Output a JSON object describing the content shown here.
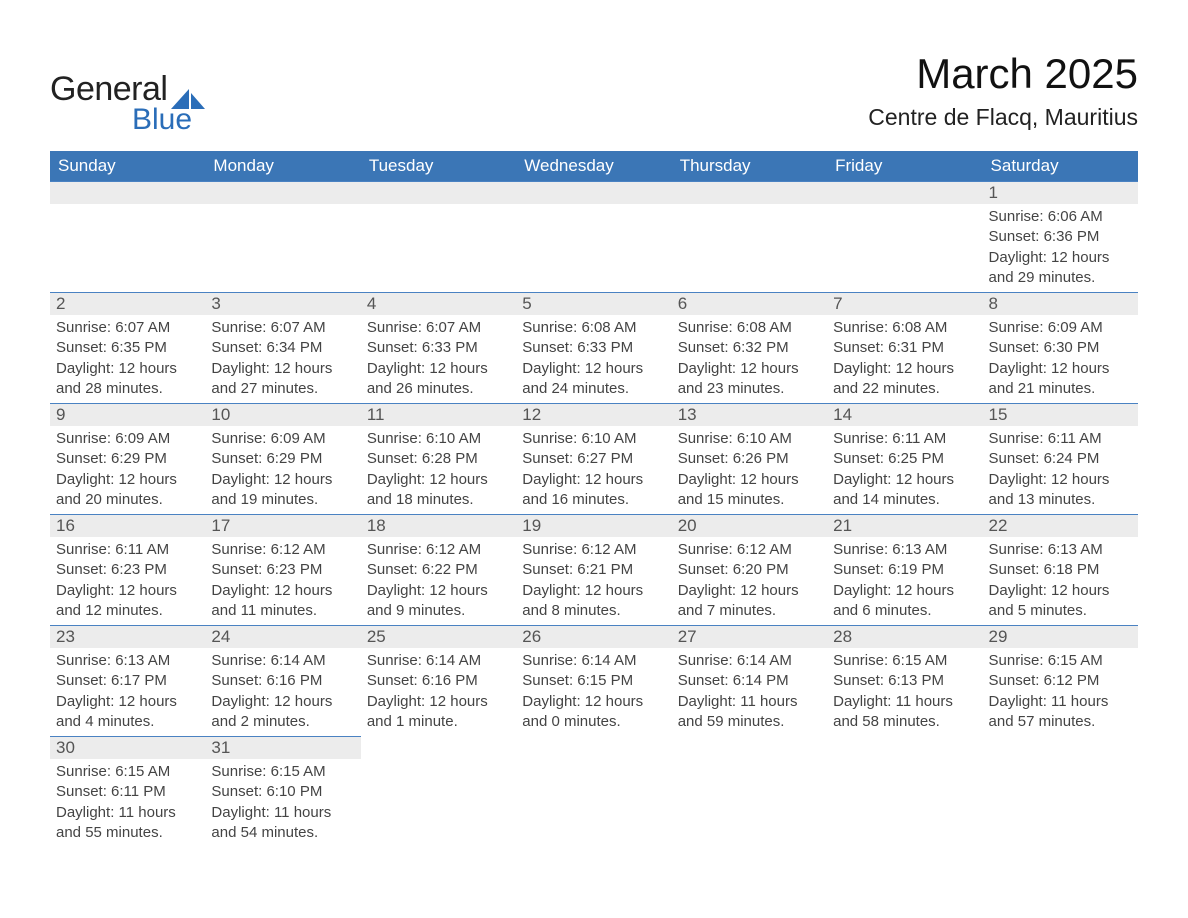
{
  "brand": {
    "word1": "General",
    "word2": "Blue",
    "accent_color": "#2a6db8"
  },
  "title": "March 2025",
  "location": "Centre de Flacq, Mauritius",
  "colors": {
    "header_bg": "#3b76b6",
    "header_text": "#ffffff",
    "daynum_bg": "#ececec",
    "row_border": "#4a82c2",
    "text": "#444444"
  },
  "fontsizes": {
    "title_pt": 42,
    "location_pt": 23,
    "th_pt": 17,
    "daynum_pt": 17,
    "body_pt": 15
  },
  "weekdays": [
    "Sunday",
    "Monday",
    "Tuesday",
    "Wednesday",
    "Thursday",
    "Friday",
    "Saturday"
  ],
  "labels": {
    "sunrise": "Sunrise:",
    "sunset": "Sunset:",
    "daylight": "Daylight:"
  },
  "calendar": {
    "type": "table",
    "weeks": [
      [
        null,
        null,
        null,
        null,
        null,
        null,
        {
          "n": "1",
          "sunrise": "6:06 AM",
          "sunset": "6:36 PM",
          "daylight": "12 hours and 29 minutes."
        }
      ],
      [
        {
          "n": "2",
          "sunrise": "6:07 AM",
          "sunset": "6:35 PM",
          "daylight": "12 hours and 28 minutes."
        },
        {
          "n": "3",
          "sunrise": "6:07 AM",
          "sunset": "6:34 PM",
          "daylight": "12 hours and 27 minutes."
        },
        {
          "n": "4",
          "sunrise": "6:07 AM",
          "sunset": "6:33 PM",
          "daylight": "12 hours and 26 minutes."
        },
        {
          "n": "5",
          "sunrise": "6:08 AM",
          "sunset": "6:33 PM",
          "daylight": "12 hours and 24 minutes."
        },
        {
          "n": "6",
          "sunrise": "6:08 AM",
          "sunset": "6:32 PM",
          "daylight": "12 hours and 23 minutes."
        },
        {
          "n": "7",
          "sunrise": "6:08 AM",
          "sunset": "6:31 PM",
          "daylight": "12 hours and 22 minutes."
        },
        {
          "n": "8",
          "sunrise": "6:09 AM",
          "sunset": "6:30 PM",
          "daylight": "12 hours and 21 minutes."
        }
      ],
      [
        {
          "n": "9",
          "sunrise": "6:09 AM",
          "sunset": "6:29 PM",
          "daylight": "12 hours and 20 minutes."
        },
        {
          "n": "10",
          "sunrise": "6:09 AM",
          "sunset": "6:29 PM",
          "daylight": "12 hours and 19 minutes."
        },
        {
          "n": "11",
          "sunrise": "6:10 AM",
          "sunset": "6:28 PM",
          "daylight": "12 hours and 18 minutes."
        },
        {
          "n": "12",
          "sunrise": "6:10 AM",
          "sunset": "6:27 PM",
          "daylight": "12 hours and 16 minutes."
        },
        {
          "n": "13",
          "sunrise": "6:10 AM",
          "sunset": "6:26 PM",
          "daylight": "12 hours and 15 minutes."
        },
        {
          "n": "14",
          "sunrise": "6:11 AM",
          "sunset": "6:25 PM",
          "daylight": "12 hours and 14 minutes."
        },
        {
          "n": "15",
          "sunrise": "6:11 AM",
          "sunset": "6:24 PM",
          "daylight": "12 hours and 13 minutes."
        }
      ],
      [
        {
          "n": "16",
          "sunrise": "6:11 AM",
          "sunset": "6:23 PM",
          "daylight": "12 hours and 12 minutes."
        },
        {
          "n": "17",
          "sunrise": "6:12 AM",
          "sunset": "6:23 PM",
          "daylight": "12 hours and 11 minutes."
        },
        {
          "n": "18",
          "sunrise": "6:12 AM",
          "sunset": "6:22 PM",
          "daylight": "12 hours and 9 minutes."
        },
        {
          "n": "19",
          "sunrise": "6:12 AM",
          "sunset": "6:21 PM",
          "daylight": "12 hours and 8 minutes."
        },
        {
          "n": "20",
          "sunrise": "6:12 AM",
          "sunset": "6:20 PM",
          "daylight": "12 hours and 7 minutes."
        },
        {
          "n": "21",
          "sunrise": "6:13 AM",
          "sunset": "6:19 PM",
          "daylight": "12 hours and 6 minutes."
        },
        {
          "n": "22",
          "sunrise": "6:13 AM",
          "sunset": "6:18 PM",
          "daylight": "12 hours and 5 minutes."
        }
      ],
      [
        {
          "n": "23",
          "sunrise": "6:13 AM",
          "sunset": "6:17 PM",
          "daylight": "12 hours and 4 minutes."
        },
        {
          "n": "24",
          "sunrise": "6:14 AM",
          "sunset": "6:16 PM",
          "daylight": "12 hours and 2 minutes."
        },
        {
          "n": "25",
          "sunrise": "6:14 AM",
          "sunset": "6:16 PM",
          "daylight": "12 hours and 1 minute."
        },
        {
          "n": "26",
          "sunrise": "6:14 AM",
          "sunset": "6:15 PM",
          "daylight": "12 hours and 0 minutes."
        },
        {
          "n": "27",
          "sunrise": "6:14 AM",
          "sunset": "6:14 PM",
          "daylight": "11 hours and 59 minutes."
        },
        {
          "n": "28",
          "sunrise": "6:15 AM",
          "sunset": "6:13 PM",
          "daylight": "11 hours and 58 minutes."
        },
        {
          "n": "29",
          "sunrise": "6:15 AM",
          "sunset": "6:12 PM",
          "daylight": "11 hours and 57 minutes."
        }
      ],
      [
        {
          "n": "30",
          "sunrise": "6:15 AM",
          "sunset": "6:11 PM",
          "daylight": "11 hours and 55 minutes."
        },
        {
          "n": "31",
          "sunrise": "6:15 AM",
          "sunset": "6:10 PM",
          "daylight": "11 hours and 54 minutes."
        },
        null,
        null,
        null,
        null,
        null
      ]
    ]
  }
}
